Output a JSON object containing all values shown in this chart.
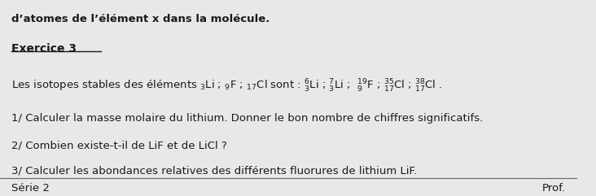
{
  "background_color": "#e8e8e8",
  "top_text": "d’atomes de l’élément x dans la molécule.",
  "exercise_title": "Exercice 3",
  "line1": "1/ Calculer la masse molaire du lithium. Donner le bon nombre de chiffres significatifs.",
  "line2": "2/ Combien existe-t-il de LiF et de LiCl ?",
  "line3": "3/ Calculer les abondances relatives des différents fluorures de lithium LiF.",
  "footer_left": "Série 2",
  "footer_right": "Prof.",
  "text_color": "#1a1a1a",
  "font_size_main": 9.5,
  "font_size_title": 10,
  "font_size_footer": 9.5
}
